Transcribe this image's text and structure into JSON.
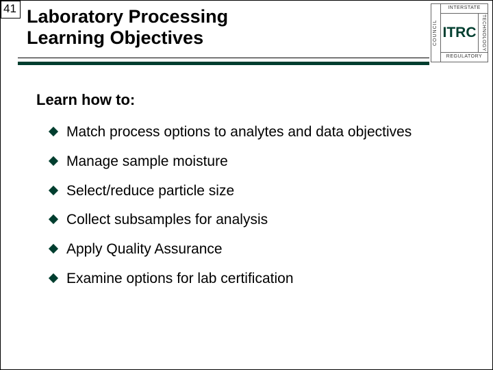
{
  "page_number": "41",
  "logo": {
    "left": "COUNCIL",
    "top": "INTERSTATE",
    "right": "TECHNOLOGY",
    "bottom": "REGULATORY",
    "center": "ITRC"
  },
  "title": {
    "line1": "Laboratory Processing",
    "line2": "Learning Objectives"
  },
  "intro": "Learn how to:",
  "bullets": [
    "Match process options to analytes and data objectives",
    "Manage sample moisture",
    "Select/reduce particle size",
    "Collect subsamples for analysis",
    "Apply Quality Assurance",
    "Examine options for lab certification"
  ],
  "colors": {
    "accent": "#003e2f",
    "text": "#000000",
    "background": "#ffffff"
  },
  "font": {
    "family": "Arial",
    "title_size_pt": 27,
    "intro_size_pt": 22,
    "body_size_pt": 21
  }
}
